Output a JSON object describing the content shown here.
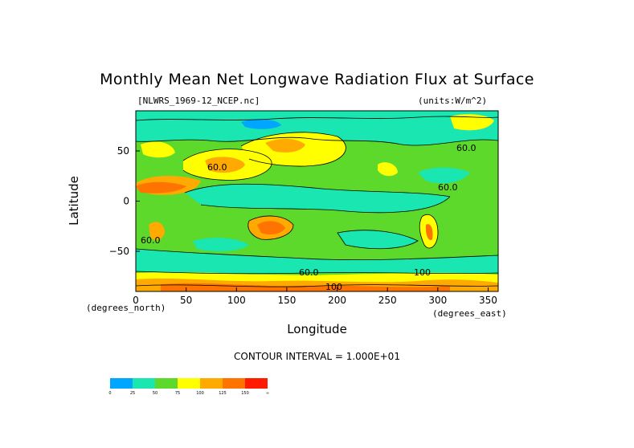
{
  "title": "Monthly Mean Net Longwave Radiation Flux at Surface",
  "subtitle": "[NLWRS_1969-12_NCEP.nc]",
  "units": "(units:W/m^2)",
  "contour_interval": "CONTOUR INTERVAL = 1.000E+01",
  "colors": {
    "blue": "#00a6ff",
    "teal": "#19e6b0",
    "green": "#5cd92a",
    "yellow": "#ffff00",
    "orange": "#ffaa00",
    "dark_orange": "#ff7300",
    "red": "#ff1a00"
  },
  "chart_data": {
    "type": "heatmap",
    "xlabel": "Longitude",
    "ylabel": "Latitude",
    "x_unit": "(degrees_north)",
    "y_unit": "(degrees_east)",
    "xlim": [
      0,
      360
    ],
    "ylim": [
      -90,
      90
    ],
    "x_ticks": [
      0,
      50,
      100,
      150,
      200,
      250,
      300,
      350
    ],
    "y_ticks": [
      50,
      0,
      -50
    ],
    "contour_labels": [
      "60.0",
      "60.0",
      "60.0",
      "60.0",
      "60.0",
      "100",
      "100"
    ],
    "colorbar": {
      "bins": [
        {
          "from": 0,
          "to": 25,
          "color": "#00a6ff"
        },
        {
          "from": 25,
          "to": 50,
          "color": "#19e6b0"
        },
        {
          "from": 50,
          "to": 75,
          "color": "#5cd92a"
        },
        {
          "from": 75,
          "to": 100,
          "color": "#ffff00"
        },
        {
          "from": 100,
          "to": 125,
          "color": "#ffaa00"
        },
        {
          "from": 125,
          "to": 150,
          "color": "#ff7300"
        },
        {
          "from": 150,
          "to": null,
          "color": "#ff1a00"
        }
      ],
      "tick_labels": [
        "0",
        "25",
        "50",
        "75",
        "100",
        "125",
        "150",
        "∞"
      ]
    }
  }
}
